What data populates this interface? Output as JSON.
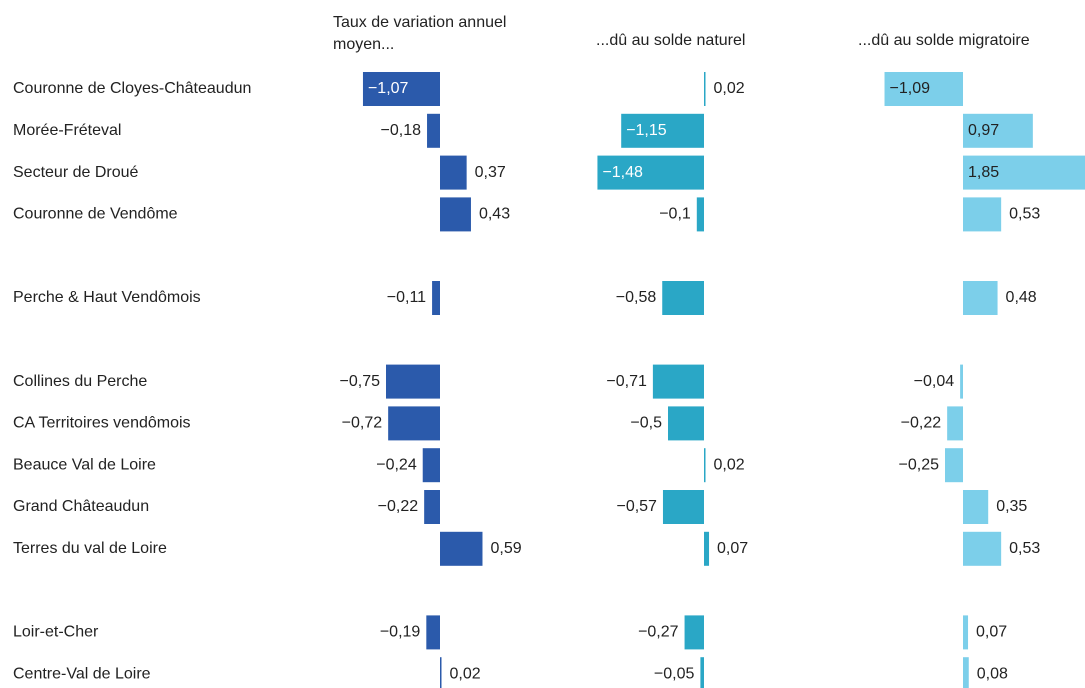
{
  "chart_data": {
    "type": "bar",
    "categories": [
      "Couronne de Cloyes-Châteaudun",
      "Morée-Fréteval",
      "Secteur de Droué",
      "Couronne de Vendôme",
      null,
      "Perche & Haut Vendômois",
      null,
      "Collines du Perche",
      "CA Territoires vendômois",
      "Beauce Val de Loire",
      "Grand Châteaudun",
      "Terres du val de Loire",
      null,
      "Loir-et-Cher",
      "Centre-Val de Loire"
    ],
    "series": [
      {
        "name": "Taux de variation annuel moyen...",
        "color": "#2b5aab",
        "values": [
          -1.07,
          -0.18,
          0.37,
          0.43,
          null,
          -0.11,
          null,
          -0.75,
          -0.72,
          -0.24,
          -0.22,
          0.59,
          null,
          -0.19,
          0.02
        ],
        "value_labels": [
          "−1,07",
          "−0,18",
          "0,37",
          "0,43",
          null,
          "−0,11",
          null,
          "−0,75",
          "−0,72",
          "−0,24",
          "−0,22",
          "0,59",
          null,
          "−0,19",
          "0,02"
        ]
      },
      {
        "name": "...dû au solde naturel",
        "color": "#2aa7c6",
        "values": [
          0.02,
          -1.15,
          -1.48,
          -0.1,
          null,
          -0.58,
          null,
          -0.71,
          -0.5,
          0.02,
          -0.57,
          0.07,
          null,
          -0.27,
          -0.05
        ],
        "value_labels": [
          "0,02",
          "−1,15",
          "−1,48",
          "−0,1",
          null,
          "−0,58",
          null,
          "−0,71",
          "−0,5",
          "0,02",
          "−0,57",
          "0,07",
          null,
          "−0,27",
          "−0,05"
        ]
      },
      {
        "name": "...dû au solde migratoire",
        "color": "#7ccfea",
        "values": [
          -1.09,
          0.97,
          1.85,
          0.53,
          null,
          0.48,
          null,
          -0.04,
          -0.22,
          -0.25,
          0.35,
          0.53,
          null,
          0.07,
          0.08
        ],
        "value_labels": [
          "−1,09",
          "0,97",
          "1,85",
          "0,53",
          null,
          "0,48",
          null,
          "−0,04",
          "−0,22",
          "−0,25",
          "0,35",
          "0,53",
          null,
          "0,07",
          "0,08"
        ]
      }
    ]
  }
}
